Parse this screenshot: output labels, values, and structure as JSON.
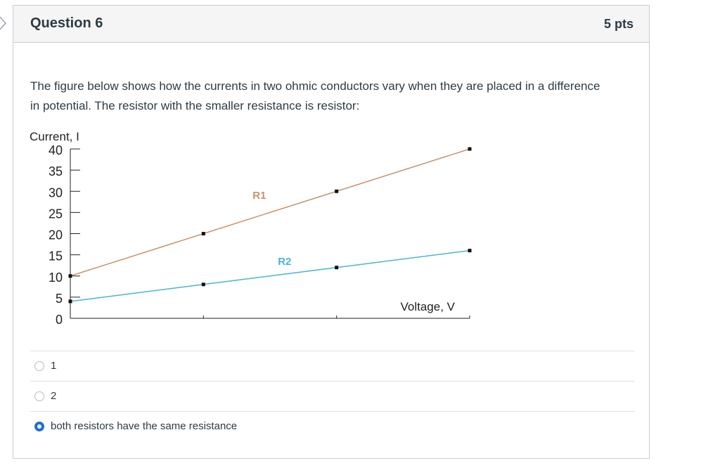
{
  "question": {
    "title": "Question 6",
    "points": "5 pts",
    "text": "The figure below shows how the currents in two ohmic conductors vary when they are placed in a difference in potential. The resistor with the smaller resistance is resistor:"
  },
  "chart_data": {
    "type": "line",
    "ylabel": "Current, I",
    "xlabel": "Voltage, V",
    "y_ticks": [
      "40",
      "35",
      "30",
      "25",
      "20",
      "15",
      "10",
      "5",
      "0"
    ],
    "ylim": [
      0,
      40
    ],
    "xlim": [
      0,
      3
    ],
    "grid": false,
    "series": [
      {
        "name": "R1",
        "color": "#c8926a",
        "x": [
          0,
          1,
          2,
          3
        ],
        "values": [
          10,
          20,
          30,
          40
        ]
      },
      {
        "name": "R2",
        "color": "#4ab3d4",
        "x": [
          0,
          1,
          2,
          3
        ],
        "values": [
          4,
          8,
          12,
          16
        ]
      }
    ]
  },
  "answers": [
    {
      "label": "1",
      "selected": false
    },
    {
      "label": "2",
      "selected": false
    },
    {
      "label": "both resistors have the same resistance",
      "selected": true
    }
  ],
  "colors": {
    "accent": "#1f6ed4",
    "header_bg": "#f5f5f5",
    "border": "#c7cdd1"
  },
  "icons": {
    "nav": "chevron-right-icon"
  }
}
